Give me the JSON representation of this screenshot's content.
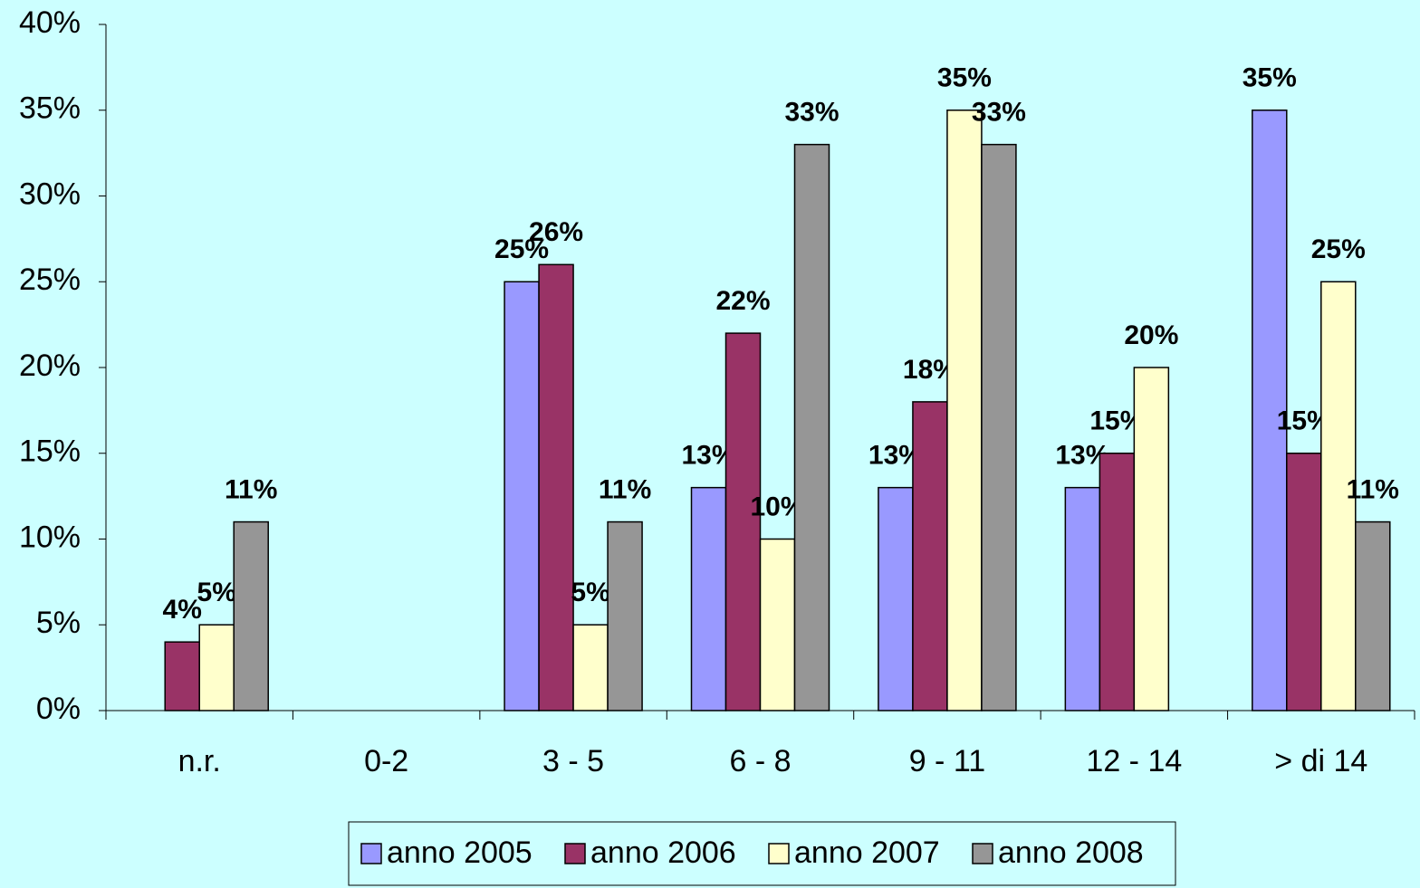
{
  "chart_data": {
    "type": "bar",
    "categories": [
      "n.r.",
      "0-2",
      "3 - 5",
      "6 - 8",
      "9 - 11",
      "12 - 14",
      "> di 14"
    ],
    "series": [
      {
        "name": "anno 2005",
        "color": "#9999ff",
        "values": [
          null,
          null,
          25,
          13,
          13,
          13,
          35
        ],
        "value_labels": [
          null,
          null,
          "25%",
          "13%",
          "13%",
          "13%",
          "35%"
        ]
      },
      {
        "name": "anno 2006",
        "color": "#993366",
        "values": [
          4,
          null,
          26,
          22,
          18,
          15,
          15
        ],
        "value_labels": [
          "4%",
          null,
          "26%",
          "22%",
          "18%",
          "15%",
          "15%"
        ]
      },
      {
        "name": "anno 2007",
        "color": "#ffffcc",
        "values": [
          5,
          null,
          5,
          10,
          35,
          20,
          25
        ],
        "value_labels": [
          "5%",
          null,
          "5%",
          "10%",
          "35%",
          "20%",
          "25%"
        ]
      },
      {
        "name": "anno 2008",
        "color": "#969696",
        "values": [
          11,
          null,
          11,
          33,
          33,
          null,
          11
        ],
        "value_labels": [
          "11%",
          null,
          "11%",
          "33%",
          "33%",
          null,
          "11%"
        ]
      }
    ],
    "ylim": [
      0,
      40
    ],
    "yticks": [
      {
        "value": 0,
        "label": "0%"
      },
      {
        "value": 5,
        "label": "5%"
      },
      {
        "value": 10,
        "label": "10%"
      },
      {
        "value": 15,
        "label": "15%"
      },
      {
        "value": 20,
        "label": "20%"
      },
      {
        "value": 25,
        "label": "25%"
      },
      {
        "value": 30,
        "label": "30%"
      },
      {
        "value": 35,
        "label": "35%"
      },
      {
        "value": 40,
        "label": "40%"
      }
    ],
    "legend": "bottom"
  }
}
